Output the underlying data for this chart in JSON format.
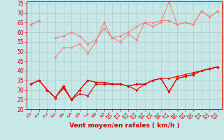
{
  "bg_color": "#c8e8e8",
  "grid_color": "#b0c8c8",
  "xlabel": "Vent moyen/en rafales ( km/h )",
  "xlabel_color": "#cc0000",
  "tick_color": "#cc0000",
  "xlim": [
    -0.5,
    23.5
  ],
  "ylim": [
    20,
    76
  ],
  "yticks": [
    20,
    25,
    30,
    35,
    40,
    45,
    50,
    55,
    60,
    65,
    70,
    75
  ],
  "xticks": [
    0,
    1,
    2,
    3,
    4,
    5,
    6,
    7,
    8,
    9,
    10,
    11,
    12,
    13,
    14,
    15,
    16,
    17,
    18,
    19,
    20,
    21,
    22,
    23
  ],
  "series_light": [
    [
      64,
      66,
      null,
      47,
      52,
      52,
      54,
      49,
      55,
      65,
      57,
      55,
      59,
      56,
      65,
      63,
      65,
      76,
      64,
      65,
      64,
      71,
      68,
      71
    ],
    [
      64,
      66,
      null,
      57,
      58,
      60,
      58,
      54,
      56,
      62,
      57,
      58,
      60,
      63,
      65,
      65,
      66,
      66,
      64,
      65,
      64,
      71,
      68,
      71
    ]
  ],
  "series_dark": [
    [
      33,
      35,
      30,
      26,
      32,
      25,
      30,
      35,
      34,
      34,
      33,
      33,
      32,
      33,
      33,
      35,
      36,
      29,
      36,
      37,
      38,
      40,
      41,
      42
    ],
    [
      33,
      35,
      30,
      26,
      32,
      25,
      30,
      35,
      34,
      34,
      33,
      33,
      32,
      33,
      33,
      35,
      36,
      36,
      37,
      38,
      39,
      40,
      41,
      42
    ],
    [
      33,
      35,
      30,
      26,
      31,
      25,
      28,
      27,
      33,
      33,
      33,
      33,
      32,
      30,
      33,
      35,
      36,
      29,
      36,
      37,
      38,
      40,
      41,
      42
    ]
  ],
  "light_color": "#f08080",
  "dark_color": "#dd0000",
  "marker_size": 2.0,
  "linewidth": 0.8,
  "tick_fontsize": 5.5,
  "xlabel_fontsize": 6.5
}
